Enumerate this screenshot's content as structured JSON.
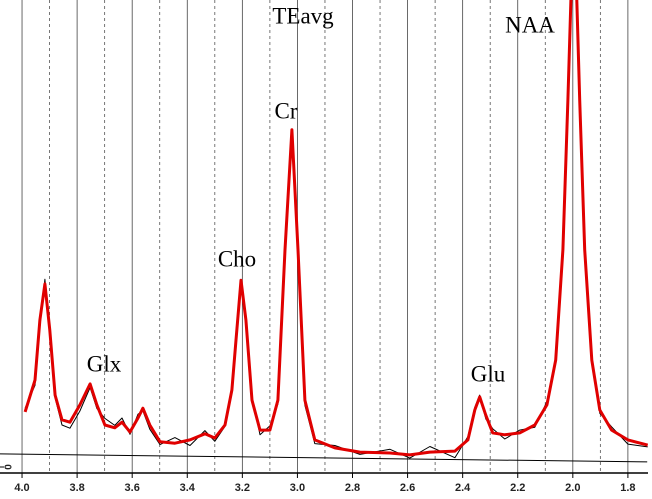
{
  "chart_data": {
    "type": "line",
    "annotations": [
      "TEavg",
      "NAA",
      "Cr",
      "Cho",
      "Glx",
      "Glu"
    ],
    "x": [
      3.989,
      3.953,
      3.935,
      3.917,
      3.899,
      3.88,
      3.855,
      3.826,
      3.79,
      3.753,
      3.728,
      3.699,
      3.663,
      3.637,
      3.608,
      3.579,
      3.561,
      3.536,
      3.499,
      3.445,
      3.39,
      3.336,
      3.3,
      3.263,
      3.238,
      3.223,
      3.205,
      3.187,
      3.165,
      3.136,
      3.1,
      3.071,
      3.045,
      3.02,
      2.998,
      2.973,
      2.937,
      2.864,
      2.773,
      2.664,
      2.592,
      2.519,
      2.428,
      2.381,
      2.356,
      2.338,
      2.316,
      2.291,
      2.247,
      2.193,
      2.138,
      2.094,
      2.062,
      2.036,
      2.018,
      1.996,
      1.975,
      1.957,
      1.931,
      1.902,
      1.859,
      1.8,
      1.728
    ],
    "series": [
      {
        "color": "#000000",
        "values": [
          12.6,
          17.5,
          30.0,
          40.2,
          28.5,
          14.8,
          9.0,
          8.3,
          12.0,
          17.0,
          12.5,
          10.4,
          8.9,
          10.5,
          7.0,
          11.3,
          12.0,
          8.1,
          4.8,
          6.3,
          4.6,
          7.8,
          5.5,
          8.7,
          17.2,
          26.0,
          39.0,
          30.5,
          15.0,
          6.9,
          8.8,
          13.5,
          45.0,
          70.9,
          47.8,
          13.2,
          5.0,
          4.6,
          2.7,
          3.8,
          1.9,
          4.4,
          2.0,
          6.5,
          12.8,
          15.4,
          10.3,
          8.2,
          6.0,
          7.9,
          8.5,
          14.0,
          23.5,
          45.8,
          77.0,
          120.0,
          77.8,
          45.2,
          23.8,
          11.5,
          8.6,
          4.9,
          4.3
        ]
      },
      {
        "color": "#000000",
        "x": [
          4.08,
          1.73
        ],
        "values": [
          2.8,
          1.1
        ]
      },
      {
        "color": "#e00000",
        "values": [
          11.8,
          18.6,
          31.5,
          39.2,
          29.3,
          15.4,
          10.1,
          9.6,
          13.3,
          17.8,
          13.3,
          9.0,
          8.4,
          9.6,
          7.5,
          10.5,
          12.6,
          9.0,
          5.4,
          5.1,
          5.8,
          7.1,
          6.2,
          9.0,
          16.5,
          27.2,
          40.0,
          31.5,
          14.3,
          7.9,
          7.9,
          14.3,
          46.5,
          72.2,
          46.5,
          14.3,
          5.8,
          4.1,
          3.2,
          3.0,
          2.6,
          3.2,
          3.4,
          5.8,
          12.2,
          15.0,
          11.1,
          7.3,
          6.9,
          7.3,
          9.0,
          13.3,
          22.9,
          46.5,
          78.6,
          121.4,
          78.6,
          46.5,
          22.9,
          12.2,
          7.9,
          5.8,
          4.7
        ]
      }
    ],
    "xlim": [
      4.08,
      1.727
    ],
    "ylim": [
      0,
      100
    ],
    "xticks": [
      {
        "value": 4,
        "label": "4.0"
      },
      3.8,
      3.6,
      3.4,
      3.2,
      {
        "value": 3,
        "label": "3.0"
      },
      2.8,
      2.6,
      2.4,
      2.2,
      {
        "value": 2,
        "label": "2.0"
      },
      1.8
    ],
    "xticks_minor": [
      3.9,
      3.7,
      3.5,
      3.3,
      3.1,
      2.9,
      2.7,
      2.5,
      2.3,
      2.1,
      1.9
    ],
    "yticks": [
      0
    ],
    "grid": true
  }
}
